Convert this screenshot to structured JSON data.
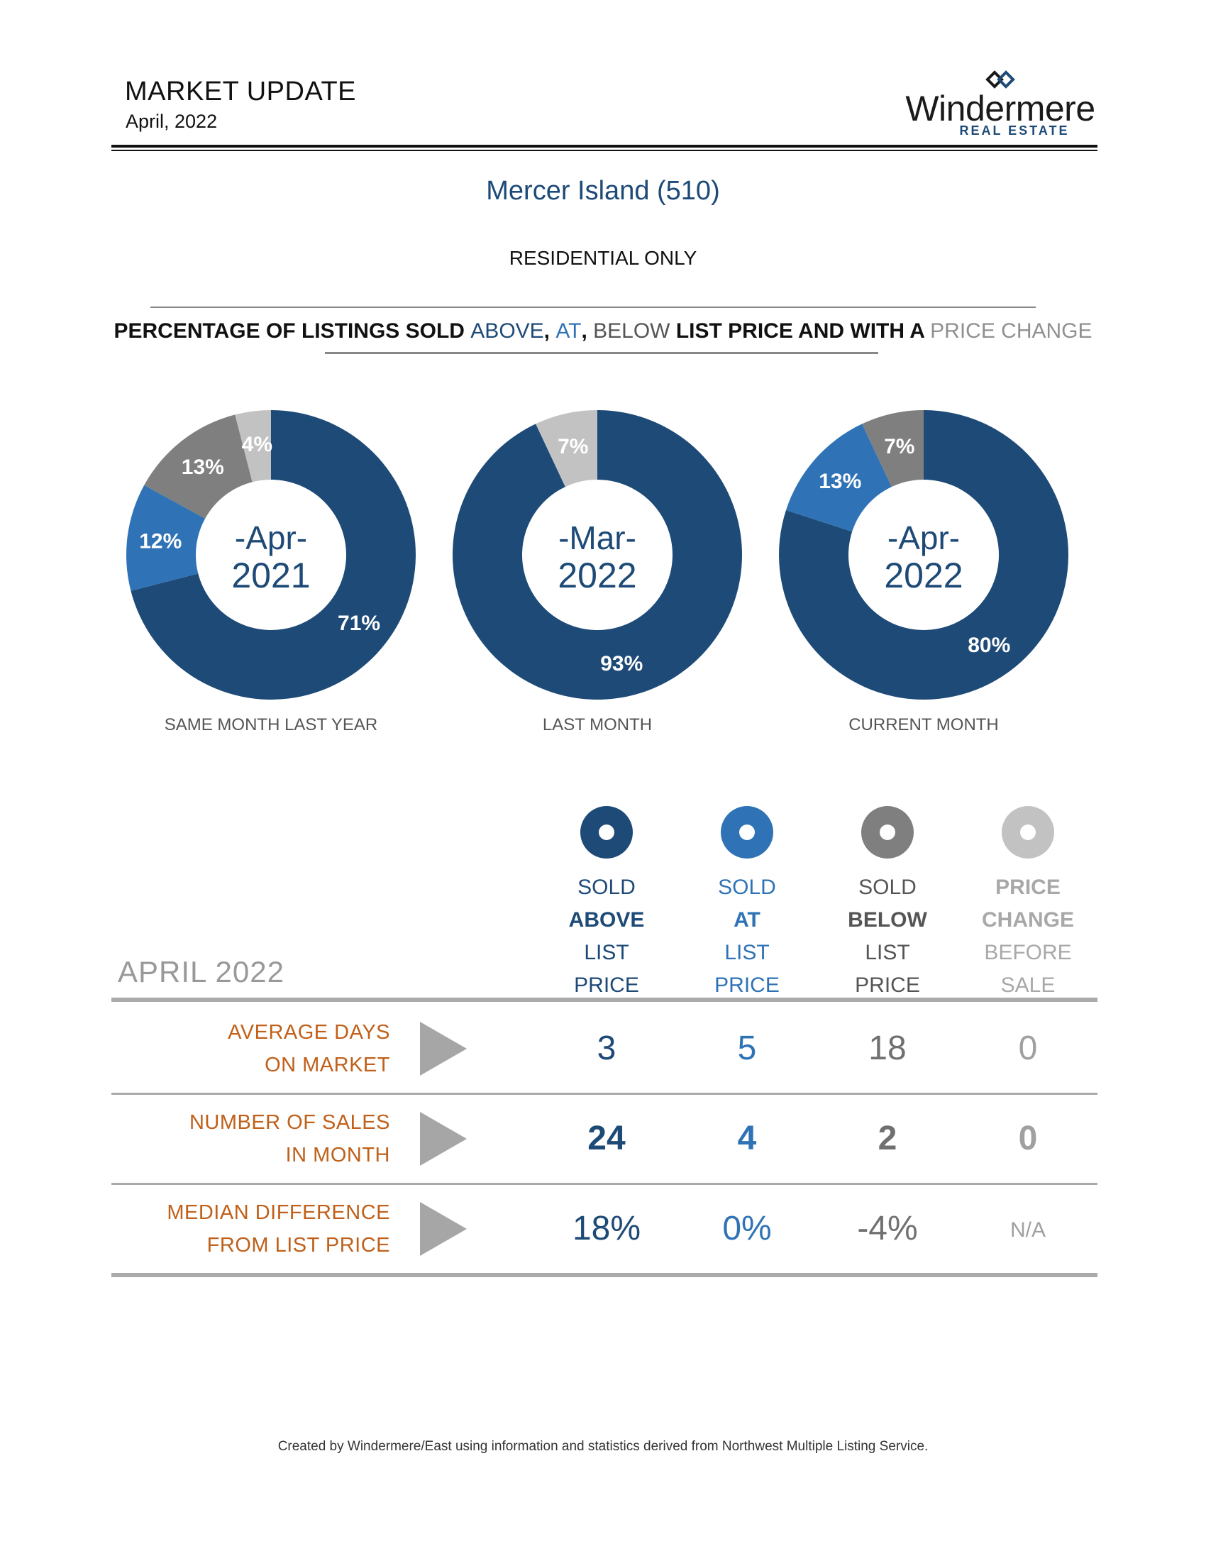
{
  "header": {
    "title": "MARKET UPDATE",
    "date": "April, 2022",
    "logo_word": "Windermere",
    "logo_sub": "REAL ESTATE"
  },
  "area_title": "Mercer Island (510)",
  "residential": "RESIDENTIAL ONLY",
  "section_heading": {
    "part1": "PERCENTAGE OF LISTINGS SOLD ",
    "above": "ABOVE",
    "sep1": ", ",
    "at": "AT",
    "sep2": ", ",
    "below": "BELOW",
    "part2": " LIST PRICE AND WITH A ",
    "change": "PRICE CHANGE"
  },
  "colors": {
    "above": "#1e4a77",
    "at": "#2f73b6",
    "below": "#7f7f7f",
    "change": "#c2c2c2",
    "label_orange": "#c0601a"
  },
  "chart_data": [
    {
      "type": "pie",
      "center_line1": "-Apr-",
      "center_line2": "2021",
      "caption": "SAME MONTH LAST YEAR",
      "categories": [
        "Sold Above List Price",
        "Sold At List Price",
        "Sold Below List Price",
        "Price Change Before Sale"
      ],
      "values": [
        71,
        12,
        13,
        4
      ],
      "labels": [
        "71%",
        "12%",
        "13%",
        "4%"
      ]
    },
    {
      "type": "pie",
      "center_line1": "-Mar-",
      "center_line2": "2022",
      "caption": "LAST MONTH",
      "categories": [
        "Sold Above List Price",
        "Sold At List Price",
        "Sold Below List Price",
        "Price Change Before Sale"
      ],
      "values": [
        93,
        0,
        0,
        7
      ],
      "labels": [
        "93%",
        "",
        "",
        "7%"
      ]
    },
    {
      "type": "pie",
      "center_line1": "-Apr-",
      "center_line2": "2022",
      "caption": "CURRENT MONTH",
      "categories": [
        "Sold Above List Price",
        "Sold At List Price",
        "Sold Below List Price",
        "Price Change Before Sale"
      ],
      "values": [
        80,
        13,
        7,
        0
      ],
      "labels": [
        "80%",
        "13%",
        "7%",
        ""
      ]
    }
  ],
  "legend": [
    {
      "key": "above",
      "line1": "SOLD",
      "line2": "ABOVE",
      "line3": "LIST",
      "line4": "PRICE"
    },
    {
      "key": "at",
      "line1": "SOLD",
      "line2": "AT",
      "line3": "LIST",
      "line4": "PRICE"
    },
    {
      "key": "below",
      "line1": "SOLD",
      "line2": "BELOW",
      "line3": "LIST",
      "line4": "PRICE"
    },
    {
      "key": "change",
      "line1": "PRICE",
      "line2": "CHANGE",
      "line3": "BEFORE",
      "line4": "SALE"
    }
  ],
  "table": {
    "month_label": "APRIL 2022",
    "rows": [
      {
        "label_line1": "AVERAGE DAYS",
        "label_line2": "ON MARKET",
        "values": [
          "3",
          "5",
          "18",
          "0"
        ]
      },
      {
        "label_line1": "NUMBER OF SALES",
        "label_line2": "IN MONTH",
        "values": [
          "24",
          "4",
          "2",
          "0"
        ]
      },
      {
        "label_line1": "MEDIAN DIFFERENCE",
        "label_line2": "FROM LIST PRICE",
        "values": [
          "18%",
          "0%",
          "-4%",
          "N/A"
        ]
      }
    ]
  },
  "footer": "Created by Windermere/East using information and statistics derived from Northwest Multiple Listing Service."
}
